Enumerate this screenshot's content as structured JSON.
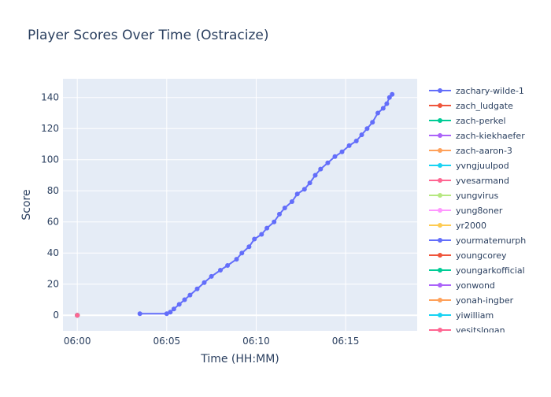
{
  "chart_data": {
    "type": "line",
    "title": "Player Scores Over Time (Ostracize)",
    "xlabel": "Time (HH:MM)",
    "ylabel": "Score",
    "x_ticks": [
      "06:00",
      "06:05",
      "06:10",
      "06:15"
    ],
    "y_ticks": [
      0,
      20,
      40,
      60,
      80,
      100,
      120,
      140
    ],
    "xlim": [
      "05:59.2",
      "06:19.0"
    ],
    "ylim": [
      -10,
      152
    ],
    "grid": true,
    "legend_position": "right",
    "series": [
      {
        "name": "zachary-wilde-1",
        "color": "#636efa",
        "points": [
          [
            "06:03.5",
            1
          ],
          [
            "06:05.0",
            1
          ],
          [
            "06:05.2",
            2
          ],
          [
            "06:05.4",
            4
          ],
          [
            "06:05.7",
            7
          ],
          [
            "06:06.0",
            10
          ],
          [
            "06:06.3",
            13
          ],
          [
            "06:06.7",
            17
          ],
          [
            "06:07.1",
            21
          ],
          [
            "06:07.5",
            25
          ],
          [
            "06:08.0",
            29
          ],
          [
            "06:08.4",
            32
          ],
          [
            "06:08.9",
            36
          ],
          [
            "06:09.2",
            40
          ],
          [
            "06:09.6",
            44
          ],
          [
            "06:09.9",
            49
          ],
          [
            "06:10.3",
            52
          ],
          [
            "06:10.6",
            56
          ],
          [
            "06:11.0",
            60
          ],
          [
            "06:11.3",
            65
          ],
          [
            "06:11.6",
            69
          ],
          [
            "06:12.0",
            73
          ],
          [
            "06:12.3",
            78
          ],
          [
            "06:12.7",
            81
          ],
          [
            "06:13.0",
            85
          ],
          [
            "06:13.3",
            90
          ],
          [
            "06:13.6",
            94
          ],
          [
            "06:14.0",
            98
          ],
          [
            "06:14.4",
            102
          ],
          [
            "06:14.8",
            105
          ],
          [
            "06:15.2",
            109
          ],
          [
            "06:15.6",
            112
          ],
          [
            "06:15.9",
            116
          ],
          [
            "06:16.2",
            120
          ],
          [
            "06:16.5",
            124
          ],
          [
            "06:16.8",
            130
          ],
          [
            "06:17.1",
            133
          ],
          [
            "06:17.3",
            136
          ],
          [
            "06:17.45",
            140
          ],
          [
            "06:17.6",
            142
          ]
        ]
      },
      {
        "name": "zach_ludgate",
        "color": "#ef553b",
        "points": [
          [
            "06:00.0",
            0
          ]
        ]
      },
      {
        "name": "zach-perkel",
        "color": "#00cc96",
        "points": [
          [
            "06:00.0",
            0
          ]
        ]
      },
      {
        "name": "zach-kiekhaefer",
        "color": "#ab63fa",
        "points": [
          [
            "06:00.0",
            0
          ]
        ]
      },
      {
        "name": "zach-aaron-3",
        "color": "#ffa15a",
        "points": [
          [
            "06:00.0",
            0
          ]
        ]
      },
      {
        "name": "yvngjuulpod",
        "color": "#19d3f3",
        "points": [
          [
            "06:00.0",
            0
          ]
        ]
      },
      {
        "name": "yvesarmand",
        "color": "#ff6692",
        "points": [
          [
            "06:00.0",
            0
          ]
        ]
      },
      {
        "name": "yungvirus",
        "color": "#b6e880",
        "points": [
          [
            "06:00.0",
            0
          ]
        ]
      },
      {
        "name": "yung8oner",
        "color": "#ff97ff",
        "points": [
          [
            "06:00.0",
            0
          ]
        ]
      },
      {
        "name": "yr2000",
        "color": "#fecb52",
        "points": [
          [
            "06:00.0",
            0
          ]
        ]
      },
      {
        "name": "yourmatemurph",
        "color": "#636efa",
        "points": [
          [
            "06:00.0",
            0
          ]
        ]
      },
      {
        "name": "youngcorey",
        "color": "#ef553b",
        "points": [
          [
            "06:00.0",
            0
          ]
        ]
      },
      {
        "name": "youngarkofficial",
        "color": "#00cc96",
        "points": [
          [
            "06:00.0",
            0
          ]
        ]
      },
      {
        "name": "yonwond",
        "color": "#ab63fa",
        "points": [
          [
            "06:00.0",
            0
          ]
        ]
      },
      {
        "name": "yonah-ingber",
        "color": "#ffa15a",
        "points": [
          [
            "06:00.0",
            0
          ]
        ]
      },
      {
        "name": "yiwilliam",
        "color": "#19d3f3",
        "points": [
          [
            "06:00.0",
            0
          ]
        ]
      },
      {
        "name": "yesitslogan",
        "color": "#ff6692",
        "points": [
          [
            "06:00.0",
            0
          ]
        ]
      }
    ]
  }
}
